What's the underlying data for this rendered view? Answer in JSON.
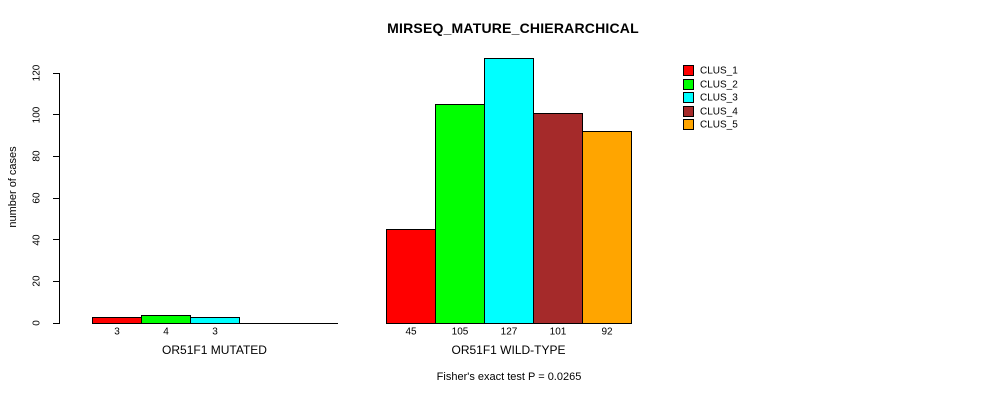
{
  "chart_data": {
    "type": "bar",
    "title": "MIRSEQ_MATURE_CHIERARCHICAL",
    "ylabel": "number of cases",
    "ylim": [
      0,
      120
    ],
    "yticks": [
      0,
      20,
      40,
      60,
      80,
      100,
      120
    ],
    "grid": false,
    "background": "#ffffff",
    "axis_color": "#000000",
    "legend_position": "top-right",
    "legend": [
      {
        "name": "CLUS_1",
        "color": "#ff0000"
      },
      {
        "name": "CLUS_2",
        "color": "#00ff00"
      },
      {
        "name": "CLUS_3",
        "color": "#00ffff"
      },
      {
        "name": "CLUS_4",
        "color": "#a52a2a"
      },
      {
        "name": "CLUS_5",
        "color": "#ffa500"
      }
    ],
    "groups": [
      {
        "label": "OR51F1 MUTATED",
        "slots": 5,
        "bars": [
          {
            "cluster": "CLUS_1",
            "value": 3,
            "label": "3"
          },
          {
            "cluster": "CLUS_2",
            "value": 4,
            "label": "4"
          },
          {
            "cluster": "CLUS_3",
            "value": 3,
            "label": "3"
          }
        ]
      },
      {
        "label": "OR51F1 WILD-TYPE",
        "slots": 5,
        "bars": [
          {
            "cluster": "CLUS_1",
            "value": 45,
            "label": "45"
          },
          {
            "cluster": "CLUS_2",
            "value": 105,
            "label": "105"
          },
          {
            "cluster": "CLUS_3",
            "value": 127,
            "label": "127"
          },
          {
            "cluster": "CLUS_4",
            "value": 101,
            "label": "101"
          },
          {
            "cluster": "CLUS_5",
            "value": 92,
            "label": "92"
          }
        ]
      }
    ],
    "annotation": "Fisher's exact test P = 0.0265"
  }
}
